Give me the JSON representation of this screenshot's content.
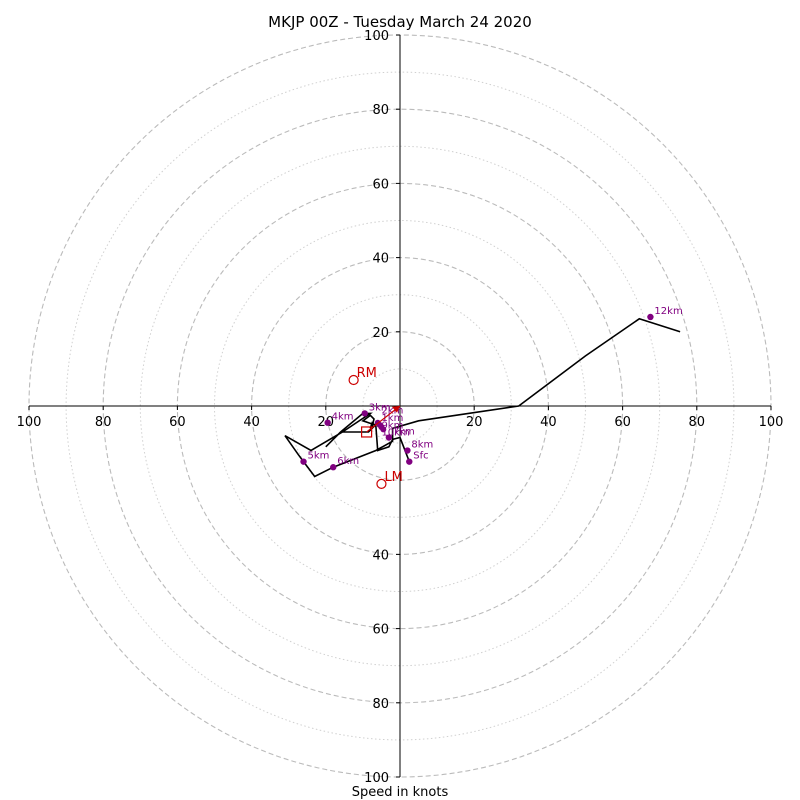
{
  "chart_data": {
    "type": "hodograph",
    "title": "MKJP 00Z - Tuesday March 24 2020",
    "xlabel": "Speed in knots",
    "ylabel": "",
    "xlim": [
      -100,
      100
    ],
    "ylim": [
      -100,
      100
    ],
    "x_tick_labels": [
      "100",
      "80",
      "60",
      "40",
      "20",
      "20",
      "40",
      "60",
      "80",
      "100"
    ],
    "x_tick_values": [
      -100,
      -80,
      -60,
      -40,
      -20,
      20,
      40,
      60,
      80,
      100
    ],
    "y_tick_labels": [
      "100",
      "80",
      "60",
      "40",
      "20",
      "40",
      "60",
      "80",
      "100"
    ],
    "y_tick_values": [
      100,
      80,
      60,
      40,
      20,
      -40,
      -60,
      -80,
      -100
    ],
    "rings_dashed": [
      20,
      40,
      60,
      80,
      100
    ],
    "rings_dotted": [
      10,
      30,
      50,
      70,
      90
    ],
    "colors": {
      "hodo_line": "#000000",
      "markers": "#800080",
      "motion": "#cc0000",
      "rings": "#bbbbbb"
    },
    "hodograph_line": [
      [
        2.5,
        -15
      ],
      [
        0,
        -8.5
      ],
      [
        -2,
        -9
      ],
      [
        -3,
        -11
      ],
      [
        -6,
        -12
      ],
      [
        -6.5,
        -5.5
      ],
      [
        -7.5,
        -4.5
      ],
      [
        -8,
        -6
      ],
      [
        -7.5,
        -5.5
      ],
      [
        -7,
        -3.5
      ],
      [
        -8,
        -2.5
      ],
      [
        -10,
        -4
      ],
      [
        -7,
        -5
      ],
      [
        -6.5,
        -5
      ],
      [
        -8.5,
        -7
      ],
      [
        -16,
        -7
      ],
      [
        -20,
        -11
      ],
      [
        -16,
        -7
      ],
      [
        -10,
        -2
      ],
      [
        -8,
        -2
      ],
      [
        -15.5,
        -7
      ],
      [
        -24,
        -12
      ],
      [
        -31,
        -8
      ],
      [
        -27.5,
        -13
      ],
      [
        -26,
        -15
      ],
      [
        -23,
        -19
      ],
      [
        -18,
        -16.5
      ],
      [
        -6.5,
        -12
      ],
      [
        -2,
        -9.5
      ],
      [
        -2,
        -6
      ],
      [
        5,
        -4
      ],
      [
        32,
        0
      ],
      [
        50,
        13.5
      ],
      [
        64.5,
        23.5
      ],
      [
        75.5,
        20
      ]
    ],
    "height_points": [
      {
        "label": "Sfc",
        "u": 2.5,
        "v": -15
      },
      {
        "label": "3km",
        "u": -9.5,
        "v": -2
      },
      {
        "label": "4km",
        "u": -19.5,
        "v": -4.5
      },
      {
        "label": "5km",
        "u": -26,
        "v": -15
      },
      {
        "label": "6km",
        "u": -18,
        "v": -16.5
      },
      {
        "label": "7km",
        "u": -3,
        "v": -8.5
      },
      {
        "label": "8km",
        "u": 2,
        "v": -12
      },
      {
        "label": "12km",
        "u": 67.5,
        "v": 24
      }
    ],
    "cluster_labels": [
      "2km",
      "1km",
      "9km",
      "10km"
    ],
    "storm_motion": [
      {
        "label": "RM",
        "u": -12.5,
        "v": 7
      },
      {
        "label": "LM",
        "u": -5,
        "v": -21
      }
    ],
    "mean_wind": {
      "u": -9,
      "v": -7
    }
  }
}
